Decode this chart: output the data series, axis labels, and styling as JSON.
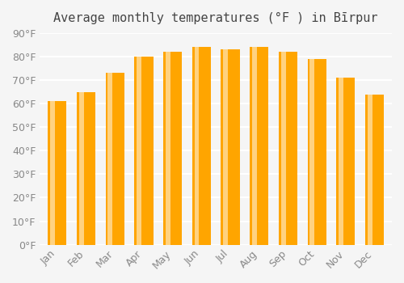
{
  "title": "Average monthly temperatures (°F ) in Bīrpur",
  "months": [
    "Jan",
    "Feb",
    "Mar",
    "Apr",
    "May",
    "Jun",
    "Jul",
    "Aug",
    "Sep",
    "Oct",
    "Nov",
    "Dec"
  ],
  "values": [
    61,
    65,
    73,
    80,
    82,
    84,
    83,
    84,
    82,
    79,
    71,
    64
  ],
  "bar_color_main": "#FFA500",
  "bar_color_light": "#FFD280",
  "ylim": [
    0,
    90
  ],
  "yticks": [
    0,
    10,
    20,
    30,
    40,
    50,
    60,
    70,
    80,
    90
  ],
  "background_color": "#f5f5f5",
  "grid_color": "#ffffff",
  "title_fontsize": 11,
  "tick_fontsize": 9
}
